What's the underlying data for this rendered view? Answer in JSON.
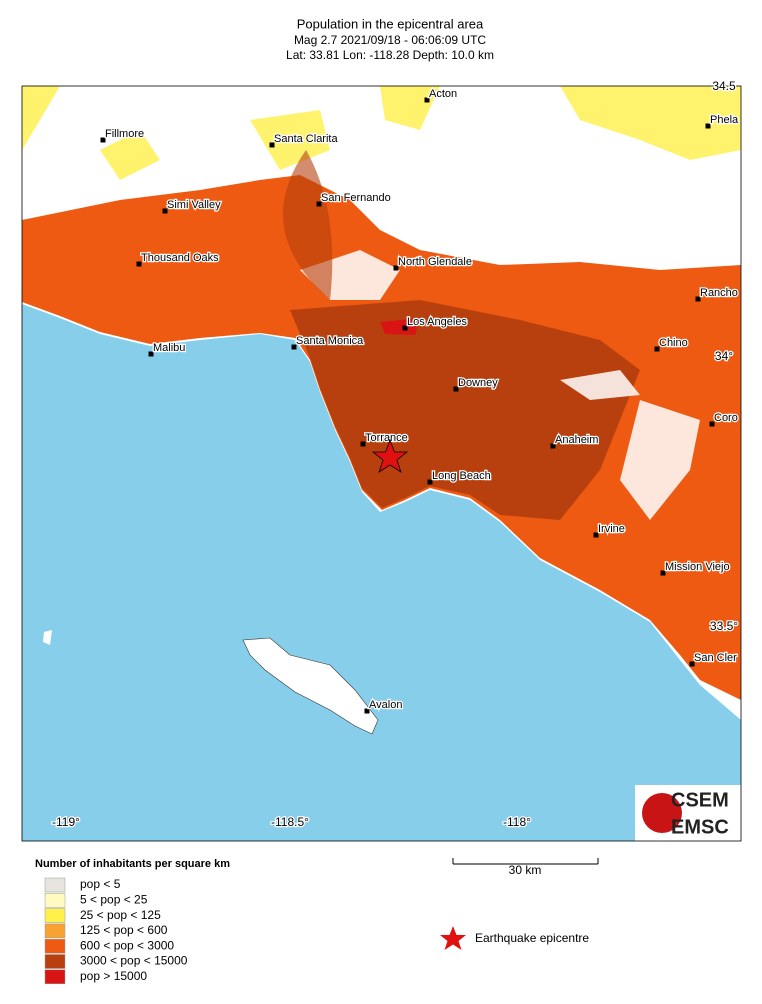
{
  "header": {
    "title": "Population in the epicentral area",
    "line2": "Mag 2.7  2021/09/18 - 06:06:09 UTC",
    "line3": "Lat: 33.81    Lon: -118.28     Depth:  10.0 km"
  },
  "cities": [
    "Acton",
    "Fillmore",
    "Santa Clarita",
    "Phela",
    "Simi Valley",
    "San Fernando",
    "Thousand Oaks",
    "North Glendale",
    "Rancho",
    "Los Angeles",
    "Santa Monica",
    "Malibu",
    "Chino",
    "Downey",
    "Coro",
    "Torrance",
    "Anaheim",
    "Long Beach",
    "Irvine",
    "Mission Viejo",
    "San Cler",
    "Avalon"
  ],
  "axes": {
    "lon": [
      "-119°",
      "-118.5°",
      "-118°"
    ],
    "lat": [
      "34.5",
      "34°",
      "33.5°"
    ]
  },
  "legend": {
    "title": "Number of inhabitants per square km",
    "items": [
      {
        "label": "pop < 5",
        "color": "#e6e6df"
      },
      {
        "label": "5 < pop < 25",
        "color": "#fffac0"
      },
      {
        "label": "25 < pop < 125",
        "color": "#fff04a"
      },
      {
        "label": "125 < pop < 600",
        "color": "#f8a232"
      },
      {
        "label": "600 < pop < 3000",
        "color": "#ee5a12"
      },
      {
        "label": "3000 < pop < 15000",
        "color": "#b8400e"
      },
      {
        "label": "pop > 15000",
        "color": "#d81414"
      }
    ]
  },
  "scale": {
    "label": "30 km"
  },
  "epicentre": {
    "label": "Earthquake epicentre"
  },
  "logo": {
    "top": "CSEM",
    "bottom": "EMSC"
  }
}
